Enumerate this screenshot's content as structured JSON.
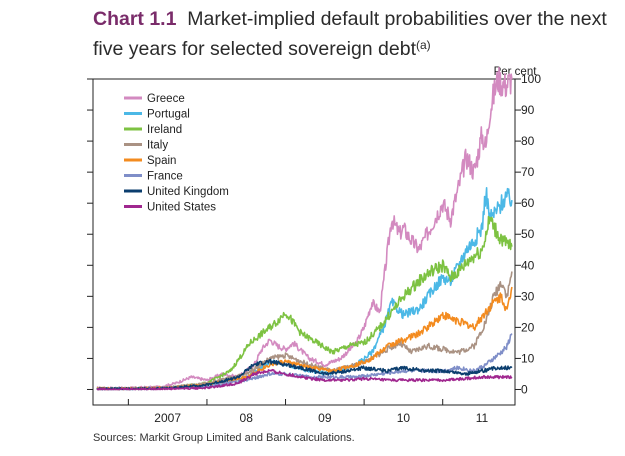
{
  "title": {
    "chart_number": "Chart 1.1",
    "text": "Market-implied default probabilities over the next five years for selected sovereign debt",
    "footnote_marker": "(a)"
  },
  "source_note": "Sources:  Markit Group Limited and Bank calculations.",
  "chart_data": {
    "type": "line",
    "title": "Market-implied default probabilities over the next five years for selected sovereign debt",
    "ylabel": "Per cent",
    "ylim": [
      -5,
      100
    ],
    "yticks": [
      0,
      10,
      20,
      30,
      40,
      50,
      60,
      70,
      80,
      90,
      100
    ],
    "xlim": [
      2006.55,
      2011.92
    ],
    "xtick_boundaries": [
      2007.0,
      2008.0,
      2009.0,
      2010.0,
      2011.0
    ],
    "xtick_labels": [
      {
        "label": "2007",
        "x": 2007.5
      },
      {
        "label": "08",
        "x": 2008.5
      },
      {
        "label": "09",
        "x": 2009.5
      },
      {
        "label": "10",
        "x": 2010.5
      },
      {
        "label": "11",
        "x": 2011.5
      }
    ],
    "legend_position": "top-left",
    "series": [
      {
        "name": "Greece",
        "color": "#d38ac0",
        "x": [
          2006.6,
          2007.0,
          2007.4,
          2007.6,
          2007.8,
          2008.0,
          2008.2,
          2008.4,
          2008.6,
          2008.7,
          2008.8,
          2008.9,
          2009.0,
          2009.1,
          2009.3,
          2009.5,
          2009.7,
          2009.9,
          2010.0,
          2010.1,
          2010.2,
          2010.3,
          2010.35,
          2010.45,
          2010.5,
          2010.6,
          2010.7,
          2010.8,
          2010.9,
          2011.0,
          2011.1,
          2011.2,
          2011.3,
          2011.4,
          2011.5,
          2011.55,
          2011.6,
          2011.7,
          2011.8,
          2011.88
        ],
        "values": [
          0.5,
          0.5,
          0.8,
          2,
          4,
          3,
          5,
          4,
          8,
          13,
          16,
          14,
          13,
          15,
          10,
          8,
          10,
          15,
          20,
          28,
          25,
          45,
          55,
          50,
          52,
          48,
          45,
          50,
          55,
          60,
          55,
          65,
          75,
          70,
          82,
          78,
          90,
          100,
          98,
          100
        ]
      },
      {
        "name": "Portugal",
        "color": "#4bb8e6",
        "x": [
          2006.6,
          2007.0,
          2007.5,
          2008.0,
          2008.5,
          2008.8,
          2009.0,
          2009.3,
          2009.6,
          2009.9,
          2010.1,
          2010.25,
          2010.35,
          2010.5,
          2010.7,
          2010.9,
          2011.0,
          2011.1,
          2011.2,
          2011.3,
          2011.4,
          2011.5,
          2011.55,
          2011.6,
          2011.7,
          2011.8,
          2011.88
        ],
        "values": [
          0.3,
          0.3,
          0.5,
          1.5,
          4,
          9,
          8,
          6,
          5,
          8,
          12,
          20,
          28,
          24,
          26,
          33,
          36,
          35,
          40,
          45,
          48,
          52,
          64,
          55,
          58,
          62,
          61
        ]
      },
      {
        "name": "Ireland",
        "color": "#7dc242",
        "x": [
          2006.6,
          2007.0,
          2007.5,
          2008.0,
          2008.3,
          2008.55,
          2008.7,
          2008.9,
          2009.0,
          2009.2,
          2009.4,
          2009.6,
          2009.8,
          2010.0,
          2010.2,
          2010.35,
          2010.5,
          2010.7,
          2010.85,
          2011.0,
          2011.1,
          2011.2,
          2011.35,
          2011.5,
          2011.6,
          2011.7,
          2011.8,
          2011.88
        ],
        "values": [
          0.3,
          0.3,
          0.5,
          2,
          6,
          15,
          18,
          22,
          25,
          18,
          15,
          12,
          14,
          15,
          20,
          25,
          30,
          35,
          38,
          40,
          36,
          38,
          42,
          45,
          55,
          50,
          47,
          46
        ]
      },
      {
        "name": "Italy",
        "color": "#aa9283",
        "x": [
          2006.6,
          2007.0,
          2007.5,
          2008.0,
          2008.5,
          2008.8,
          2009.0,
          2009.3,
          2009.6,
          2009.9,
          2010.1,
          2010.3,
          2010.45,
          2010.6,
          2010.8,
          2011.0,
          2011.2,
          2011.4,
          2011.55,
          2011.65,
          2011.75,
          2011.82,
          2011.88
        ],
        "values": [
          0.3,
          0.3,
          0.6,
          2,
          5,
          10,
          11,
          8,
          6,
          8,
          10,
          13,
          15,
          12,
          14,
          13,
          12,
          14,
          22,
          30,
          35,
          30,
          38
        ]
      },
      {
        "name": "Spain",
        "color": "#f38b1f",
        "x": [
          2006.6,
          2007.0,
          2007.5,
          2008.0,
          2008.5,
          2008.8,
          2009.0,
          2009.3,
          2009.6,
          2009.9,
          2010.1,
          2010.3,
          2010.5,
          2010.7,
          2010.9,
          2011.0,
          2011.2,
          2011.4,
          2011.55,
          2011.65,
          2011.75,
          2011.82,
          2011.88
        ],
        "values": [
          0.3,
          0.3,
          0.5,
          1.5,
          4,
          8,
          9,
          7,
          6,
          8,
          10,
          14,
          16,
          18,
          22,
          24,
          22,
          20,
          25,
          28,
          30,
          25,
          33
        ]
      },
      {
        "name": "France",
        "color": "#7f8ec8",
        "x": [
          2006.6,
          2007.0,
          2007.5,
          2008.0,
          2008.5,
          2008.8,
          2009.0,
          2009.3,
          2009.6,
          2009.9,
          2010.2,
          2010.5,
          2010.8,
          2011.0,
          2011.2,
          2011.4,
          2011.55,
          2011.65,
          2011.75,
          2011.82,
          2011.88
        ],
        "values": [
          0.2,
          0.2,
          0.4,
          1,
          3,
          5,
          5,
          4,
          4,
          4,
          5,
          6,
          6,
          6,
          7,
          6,
          8,
          10,
          12,
          14,
          18
        ]
      },
      {
        "name": "United Kingdom",
        "color": "#0b3e6e",
        "x": [
          2006.6,
          2007.0,
          2007.5,
          2008.0,
          2008.4,
          2008.6,
          2008.8,
          2009.0,
          2009.2,
          2009.5,
          2009.8,
          2010.0,
          2010.3,
          2010.5,
          2010.8,
          2011.0,
          2011.3,
          2011.5,
          2011.7,
          2011.88
        ],
        "values": [
          0.2,
          0.2,
          0.4,
          1.5,
          4,
          8,
          9,
          8,
          7,
          5,
          6,
          7,
          6,
          7,
          6,
          6,
          5,
          6,
          7,
          7
        ]
      },
      {
        "name": "United States",
        "color": "#a0278f",
        "x": [
          2006.6,
          2007.0,
          2007.5,
          2008.0,
          2008.4,
          2008.6,
          2008.8,
          2009.0,
          2009.2,
          2009.5,
          2009.8,
          2010.0,
          2010.3,
          2010.5,
          2010.8,
          2011.0,
          2011.3,
          2011.5,
          2011.7,
          2011.88
        ],
        "values": [
          0.1,
          0.1,
          0.2,
          0.5,
          2,
          5,
          6,
          5,
          4,
          3,
          3,
          3.5,
          3,
          3,
          3,
          3,
          3.5,
          4,
          4,
          4
        ]
      }
    ]
  }
}
